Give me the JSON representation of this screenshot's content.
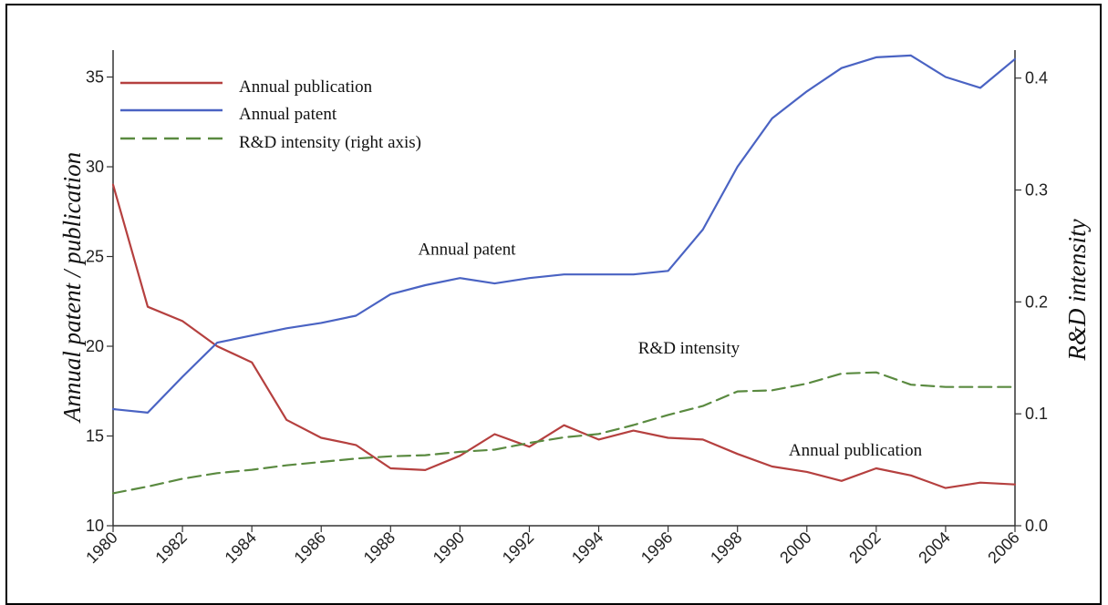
{
  "chart_data": {
    "type": "line",
    "xlim": [
      1980,
      2006
    ],
    "x_ticks": [
      "1980",
      "1982",
      "1984",
      "1986",
      "1988",
      "1990",
      "1992",
      "1994",
      "1996",
      "1998",
      "2000",
      "2002",
      "2004",
      "2006"
    ],
    "ylabel_left": "Annual patent / publication",
    "ylim_left": [
      10,
      36.5
    ],
    "y_ticks_left": [
      "10",
      "15",
      "20",
      "25",
      "30",
      "35"
    ],
    "ylabel_right": "R&D intensity",
    "ylim_right": [
      0,
      0.425
    ],
    "y_ticks_right": [
      "0.0",
      "0.1",
      "0.2",
      "0.3",
      "0.4"
    ],
    "grid": false,
    "legend_position": "top-left",
    "series": [
      {
        "name": "Annual publication",
        "color": "#b5403f",
        "axis": "left",
        "style": "solid",
        "x": [
          1980,
          1981,
          1982,
          1983,
          1984,
          1985,
          1986,
          1987,
          1988,
          1989,
          1990,
          1991,
          1992,
          1993,
          1994,
          1995,
          1996,
          1997,
          1998,
          1999,
          2000,
          2001,
          2002,
          2003,
          2004,
          2005,
          2006
        ],
        "values": [
          29,
          22.2,
          21.4,
          20,
          19.1,
          15.9,
          14.9,
          14.5,
          13.2,
          13.1,
          13.9,
          15.1,
          14.4,
          15.6,
          14.8,
          15.3,
          14.9,
          14.8,
          14,
          13.3,
          13,
          12.5,
          13.2,
          12.8,
          12.1,
          12.4,
          12.3
        ]
      },
      {
        "name": "Annual patent",
        "color": "#4a63c3",
        "axis": "left",
        "style": "solid",
        "x": [
          1980,
          1981,
          1982,
          1983,
          1984,
          1985,
          1986,
          1987,
          1988,
          1989,
          1990,
          1991,
          1992,
          1993,
          1994,
          1995,
          1996,
          1997,
          1998,
          1999,
          2000,
          2001,
          2002,
          2003,
          2004,
          2005,
          2006
        ],
        "values": [
          16.5,
          16.3,
          18.3,
          20.2,
          20.6,
          21,
          21.3,
          21.7,
          22.9,
          23.4,
          23.8,
          23.5,
          23.8,
          24,
          24,
          24,
          24.2,
          26.5,
          30,
          32.7,
          34.2,
          35.5,
          36.1,
          36.2,
          35,
          34.4,
          36
        ]
      },
      {
        "name": "R&D intensity (right axis)",
        "color": "#5a8a40",
        "axis": "right",
        "style": "dashed",
        "x": [
          1980,
          1981,
          1982,
          1983,
          1984,
          1985,
          1986,
          1987,
          1988,
          1989,
          1990,
          1991,
          1992,
          1993,
          1994,
          1995,
          1996,
          1997,
          1998,
          1999,
          2000,
          2001,
          2002,
          2003,
          2004,
          2005,
          2006
        ],
        "values": [
          0.029,
          0.035,
          0.042,
          0.047,
          0.05,
          0.054,
          0.057,
          0.06,
          0.062,
          0.063,
          0.066,
          0.068,
          0.074,
          0.079,
          0.082,
          0.09,
          0.099,
          0.107,
          0.12,
          0.121,
          0.127,
          0.136,
          0.137,
          0.126,
          0.124,
          0.124,
          0.124
        ]
      }
    ],
    "annotations": [
      {
        "text": "Annual patent",
        "x": 1990.2,
        "y": 25.1,
        "axis": "left"
      },
      {
        "text": "R&D intensity",
        "x": 1996.6,
        "y": 0.154,
        "axis": "right"
      },
      {
        "text": "Annual publication",
        "x": 2001.4,
        "y": 13.9,
        "axis": "left"
      }
    ]
  }
}
